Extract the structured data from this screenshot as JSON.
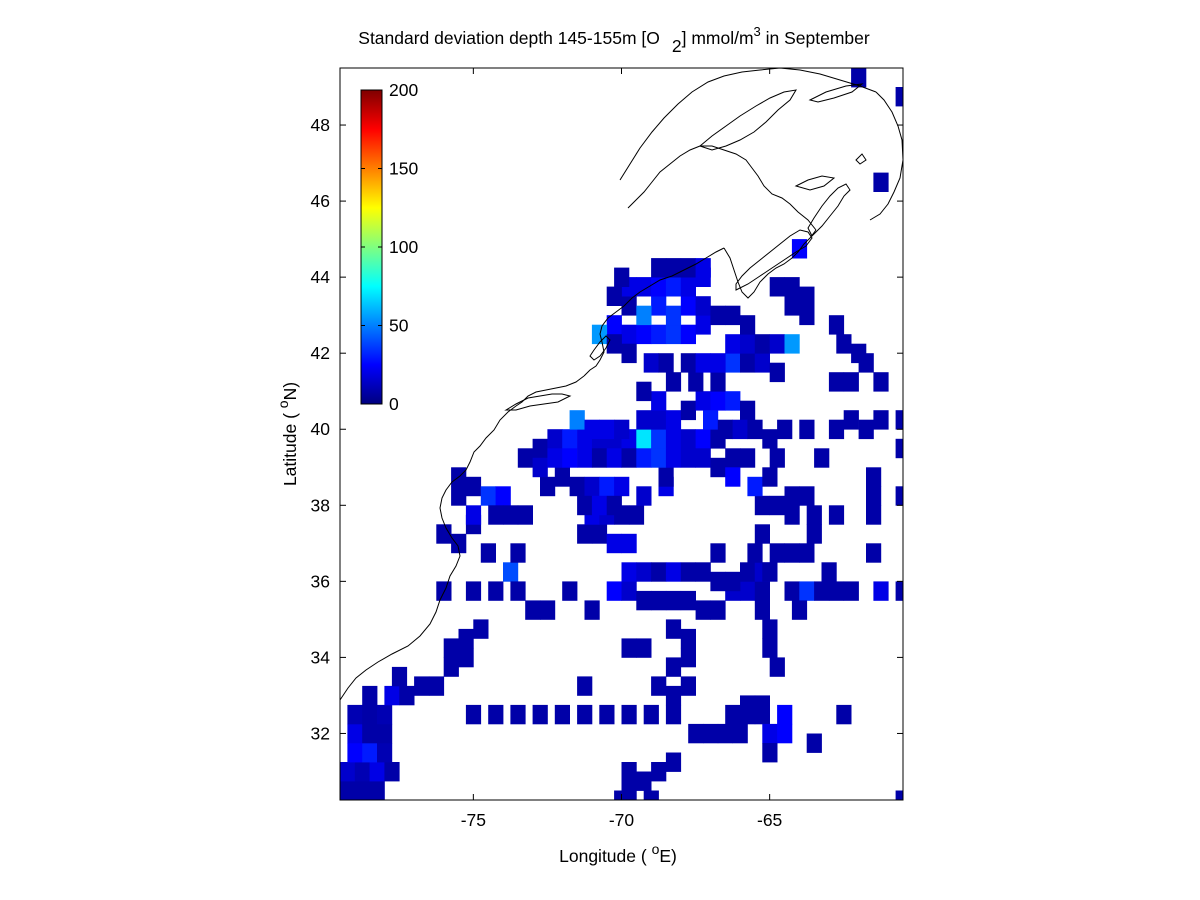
{
  "figure": {
    "title": "Standard deviation depth 145-155m [O 2] mmol/m3 in September",
    "title_parts": {
      "main": "Standard deviation depth 145-155m [O",
      "sub": "2",
      "unit_pre": "] mmol/m",
      "sup": "3",
      "tail": " in September"
    },
    "xlabel": "Longitude ( °E)",
    "xlabel_parts": {
      "pre": "Longitude ( ",
      "sup": "o",
      "post": "E)"
    },
    "ylabel": "Latitude ( °N)",
    "ylabel_parts": {
      "pre": "Latitude ( ",
      "sup": "o",
      "post": "N)"
    }
  },
  "chart_data": {
    "type": "heatmap",
    "title": "Standard deviation depth 145-155m [O2] mmol/m3 in September",
    "xlabel": "Longitude ( °E)",
    "ylabel": "Latitude ( °N)",
    "xlim": [
      -79.5,
      -60.5
    ],
    "ylim": [
      30.25,
      49.5
    ],
    "xticks": [
      -75,
      -70,
      -65
    ],
    "xtick_labels": [
      "-75",
      "-70",
      "-65"
    ],
    "yticks": [
      32,
      34,
      36,
      38,
      40,
      42,
      44,
      46,
      48
    ],
    "ytick_labels": [
      "32",
      "34",
      "36",
      "38",
      "40",
      "42",
      "44",
      "46",
      "48"
    ],
    "cell_size_deg": 0.5,
    "colormap": "jet",
    "colorbar": {
      "min": 0,
      "max": 200,
      "ticks": [
        0,
        50,
        100,
        150,
        200
      ],
      "tick_labels": [
        "0",
        "50",
        "100",
        "150",
        "200"
      ],
      "placement": "upper-left inside axes"
    },
    "coastline": "Northeast US and Atlantic Canada coast (black line)",
    "cells": [
      [
        -79.25,
        30.5,
        8
      ],
      [
        -78.75,
        30.5,
        8
      ],
      [
        -78.25,
        30.5,
        8
      ],
      [
        -79.25,
        31.0,
        15
      ],
      [
        -78.75,
        31.0,
        10
      ],
      [
        -78.25,
        31.0,
        20
      ],
      [
        -77.75,
        31.0,
        8
      ],
      [
        -79.0,
        31.5,
        25
      ],
      [
        -78.5,
        31.5,
        30
      ],
      [
        -78.0,
        31.5,
        10
      ],
      [
        -79.0,
        32.0,
        20
      ],
      [
        -78.5,
        32.0,
        8
      ],
      [
        -78.0,
        32.0,
        8
      ],
      [
        -79.0,
        32.5,
        10
      ],
      [
        -78.5,
        32.5,
        8
      ],
      [
        -78.0,
        32.5,
        10
      ],
      [
        -78.5,
        33.0,
        8
      ],
      [
        -77.75,
        33.0,
        20
      ],
      [
        -77.25,
        33.0,
        8
      ],
      [
        -76.75,
        33.25,
        8
      ],
      [
        -76.25,
        33.25,
        8
      ],
      [
        -77.5,
        33.5,
        8
      ],
      [
        -75.75,
        33.75,
        8
      ],
      [
        -75.25,
        34.0,
        8
      ],
      [
        -75.75,
        34.25,
        8
      ],
      [
        -75.25,
        34.5,
        8
      ],
      [
        -74.75,
        34.75,
        8
      ],
      [
        -75.0,
        32.5,
        8
      ],
      [
        -74.25,
        32.5,
        8
      ],
      [
        -73.5,
        32.5,
        8
      ],
      [
        -72.75,
        32.5,
        8
      ],
      [
        -72.0,
        32.5,
        8
      ],
      [
        -71.25,
        32.5,
        8
      ],
      [
        -70.5,
        32.5,
        8
      ],
      [
        -69.75,
        32.5,
        8
      ],
      [
        -69.0,
        32.5,
        8
      ],
      [
        -68.25,
        32.5,
        8
      ],
      [
        -71.25,
        33.25,
        8
      ],
      [
        -70.0,
        30.25,
        8
      ],
      [
        -69.75,
        30.5,
        8
      ],
      [
        -69.0,
        30.25,
        8
      ],
      [
        -69.75,
        31.0,
        8
      ],
      [
        -69.25,
        30.75,
        8
      ],
      [
        -68.75,
        31.0,
        8
      ],
      [
        -68.25,
        31.25,
        8
      ],
      [
        -68.25,
        33.0,
        8
      ],
      [
        -68.75,
        33.25,
        8
      ],
      [
        -67.75,
        33.25,
        8
      ],
      [
        -68.25,
        33.75,
        8
      ],
      [
        -67.75,
        34.0,
        8
      ],
      [
        -67.75,
        34.5,
        8
      ],
      [
        -68.25,
        34.75,
        8
      ],
      [
        -69.75,
        34.25,
        8
      ],
      [
        -69.25,
        34.25,
        8
      ],
      [
        -67.5,
        32.0,
        8
      ],
      [
        -67.0,
        32.0,
        8
      ],
      [
        -66.5,
        32.0,
        8
      ],
      [
        -66.0,
        32.0,
        8
      ],
      [
        -66.25,
        32.5,
        8
      ],
      [
        -65.75,
        32.5,
        8
      ],
      [
        -65.25,
        32.5,
        8
      ],
      [
        -65.75,
        32.75,
        8
      ],
      [
        -65.25,
        32.75,
        8
      ],
      [
        -65.0,
        32.0,
        20
      ],
      [
        -64.5,
        32.0,
        25
      ],
      [
        -64.5,
        32.5,
        25
      ],
      [
        -65.0,
        31.5,
        8
      ],
      [
        -63.5,
        31.75,
        8
      ],
      [
        -62.5,
        32.5,
        8
      ],
      [
        -60.5,
        30.25,
        8
      ],
      [
        -76.0,
        35.75,
        8
      ],
      [
        -75.0,
        35.75,
        8
      ],
      [
        -74.25,
        35.75,
        8
      ],
      [
        -73.75,
        36.25,
        40
      ],
      [
        -73.5,
        35.75,
        8
      ],
      [
        -73.0,
        35.25,
        8
      ],
      [
        -72.5,
        35.25,
        8
      ],
      [
        -71.75,
        35.75,
        8
      ],
      [
        -71.0,
        35.25,
        8
      ],
      [
        -70.25,
        35.75,
        25
      ],
      [
        -69.75,
        35.75,
        15
      ],
      [
        -69.25,
        35.5,
        8
      ],
      [
        -68.75,
        35.5,
        8
      ],
      [
        -68.25,
        35.5,
        8
      ],
      [
        -67.75,
        35.5,
        8
      ],
      [
        -67.25,
        35.25,
        8
      ],
      [
        -66.75,
        35.25,
        8
      ],
      [
        -66.25,
        35.75,
        15
      ],
      [
        -65.75,
        35.75,
        15
      ],
      [
        -65.25,
        35.75,
        8
      ],
      [
        -69.75,
        36.25,
        20
      ],
      [
        -69.25,
        36.25,
        15
      ],
      [
        -68.75,
        36.25,
        8
      ],
      [
        -68.25,
        36.25,
        20
      ],
      [
        -67.75,
        36.25,
        8
      ],
      [
        -67.25,
        36.25,
        8
      ],
      [
        -66.75,
        36.0,
        8
      ],
      [
        -66.25,
        36.0,
        8
      ],
      [
        -65.75,
        36.25,
        8
      ],
      [
        -65.25,
        36.25,
        15
      ],
      [
        -65.25,
        35.25,
        8
      ],
      [
        -65.0,
        34.75,
        8
      ],
      [
        -65.0,
        34.25,
        8
      ],
      [
        -64.75,
        33.75,
        8
      ],
      [
        -64.25,
        35.75,
        8
      ],
      [
        -63.75,
        35.75,
        35
      ],
      [
        -63.25,
        35.75,
        8
      ],
      [
        -62.75,
        35.75,
        8
      ],
      [
        -62.25,
        35.75,
        8
      ],
      [
        -61.25,
        35.75,
        20
      ],
      [
        -60.5,
        35.75,
        8
      ],
      [
        -64.0,
        35.25,
        8
      ],
      [
        -63.0,
        36.25,
        8
      ],
      [
        -76.0,
        37.25,
        8
      ],
      [
        -75.5,
        37.0,
        8
      ],
      [
        -75.0,
        37.5,
        8
      ],
      [
        -74.5,
        36.75,
        8
      ],
      [
        -73.5,
        36.75,
        8
      ],
      [
        -75.5,
        38.25,
        8
      ],
      [
        -75.0,
        38.5,
        8
      ],
      [
        -74.5,
        38.25,
        35
      ],
      [
        -74.0,
        38.25,
        25
      ],
      [
        -75.5,
        38.75,
        8
      ],
      [
        -75.0,
        37.75,
        20
      ],
      [
        -74.25,
        37.75,
        8
      ],
      [
        -73.75,
        37.75,
        8
      ],
      [
        -73.25,
        37.75,
        8
      ],
      [
        -72.5,
        38.5,
        8
      ],
      [
        -72.0,
        38.75,
        8
      ],
      [
        -71.5,
        38.5,
        8
      ],
      [
        -71.0,
        38.5,
        15
      ],
      [
        -70.5,
        38.5,
        30
      ],
      [
        -70.0,
        38.5,
        20
      ],
      [
        -71.25,
        37.25,
        8
      ],
      [
        -70.75,
        37.25,
        8
      ],
      [
        -70.25,
        37.0,
        20
      ],
      [
        -69.75,
        37.0,
        20
      ],
      [
        -71.0,
        37.75,
        20
      ],
      [
        -70.5,
        37.75,
        15
      ],
      [
        -70.0,
        37.75,
        8
      ],
      [
        -69.5,
        37.75,
        8
      ],
      [
        -71.25,
        38.0,
        8
      ],
      [
        -70.75,
        38.0,
        20
      ],
      [
        -70.25,
        38.0,
        8
      ],
      [
        -69.25,
        38.25,
        15
      ],
      [
        -68.5,
        38.5,
        20
      ],
      [
        -68.5,
        38.75,
        8
      ],
      [
        -65.25,
        38.0,
        8
      ],
      [
        -64.75,
        38.0,
        8
      ],
      [
        -64.25,
        38.25,
        8
      ],
      [
        -63.75,
        38.25,
        8
      ],
      [
        -65.5,
        38.5,
        30
      ],
      [
        -65.0,
        38.75,
        8
      ],
      [
        -64.75,
        39.25,
        8
      ],
      [
        -64.25,
        37.75,
        8
      ],
      [
        -63.5,
        37.75,
        8
      ],
      [
        -62.75,
        37.75,
        8
      ],
      [
        -61.5,
        37.75,
        8
      ],
      [
        -63.5,
        37.25,
        8
      ],
      [
        -65.25,
        37.25,
        8
      ],
      [
        -64.75,
        36.75,
        8
      ],
      [
        -64.25,
        36.75,
        8
      ],
      [
        -63.75,
        36.75,
        8
      ],
      [
        -65.5,
        36.75,
        8
      ],
      [
        -65.0,
        36.25,
        8
      ],
      [
        -66.75,
        36.75,
        8
      ],
      [
        -61.5,
        36.75,
        8
      ],
      [
        -61.5,
        38.25,
        8
      ],
      [
        -60.5,
        38.25,
        8
      ],
      [
        -61.5,
        38.75,
        8
      ],
      [
        -72.75,
        39.5,
        8
      ],
      [
        -72.25,
        39.75,
        15
      ],
      [
        -71.75,
        39.75,
        30
      ],
      [
        -71.25,
        39.75,
        20
      ],
      [
        -70.75,
        39.75,
        15
      ],
      [
        -70.25,
        39.75,
        15
      ],
      [
        -69.75,
        39.75,
        20
      ],
      [
        -69.25,
        39.75,
        70
      ],
      [
        -68.75,
        39.75,
        35
      ],
      [
        -68.25,
        39.75,
        20
      ],
      [
        -67.75,
        39.75,
        15
      ],
      [
        -67.25,
        39.75,
        25
      ],
      [
        -66.75,
        39.75,
        8
      ],
      [
        -73.25,
        39.25,
        8
      ],
      [
        -72.75,
        39.0,
        15
      ],
      [
        -72.25,
        39.25,
        20
      ],
      [
        -71.75,
        39.25,
        25
      ],
      [
        -71.25,
        39.25,
        20
      ],
      [
        -70.75,
        39.25,
        8
      ],
      [
        -70.25,
        39.25,
        20
      ],
      [
        -69.75,
        39.25,
        8
      ],
      [
        -69.25,
        39.25,
        30
      ],
      [
        -68.75,
        39.25,
        35
      ],
      [
        -68.25,
        39.25,
        20
      ],
      [
        -67.75,
        39.25,
        15
      ],
      [
        -67.25,
        39.25,
        15
      ],
      [
        -71.5,
        40.25,
        50
      ],
      [
        -71.0,
        40.0,
        20
      ],
      [
        -70.5,
        40.0,
        20
      ],
      [
        -70.0,
        40.0,
        15
      ],
      [
        -69.25,
        40.25,
        15
      ],
      [
        -68.75,
        40.25,
        15
      ],
      [
        -68.25,
        40.25,
        20
      ],
      [
        -67.75,
        40.5,
        8
      ],
      [
        -67.25,
        40.75,
        20
      ],
      [
        -66.75,
        40.75,
        25
      ],
      [
        -66.25,
        40.75,
        30
      ],
      [
        -65.75,
        40.5,
        8
      ],
      [
        -67.0,
        40.25,
        30
      ],
      [
        -66.5,
        40.0,
        8
      ],
      [
        -66.0,
        40.0,
        15
      ],
      [
        -65.5,
        40.0,
        8
      ],
      [
        -66.75,
        39.0,
        8
      ],
      [
        -66.25,
        39.25,
        8
      ],
      [
        -65.75,
        39.25,
        8
      ],
      [
        -66.25,
        38.75,
        25
      ],
      [
        -65.0,
        39.75,
        8
      ],
      [
        -64.5,
        40.0,
        8
      ],
      [
        -63.75,
        40.0,
        8
      ],
      [
        -62.75,
        40.0,
        8
      ],
      [
        -62.25,
        40.25,
        8
      ],
      [
        -61.75,
        40.0,
        8
      ],
      [
        -61.25,
        40.25,
        8
      ],
      [
        -60.5,
        40.25,
        8
      ],
      [
        -63.25,
        39.25,
        8
      ],
      [
        -60.5,
        39.5,
        8
      ],
      [
        -68.75,
        40.75,
        20
      ],
      [
        -69.25,
        41.0,
        8
      ],
      [
        -68.25,
        41.25,
        8
      ],
      [
        -67.5,
        41.25,
        8
      ],
      [
        -66.75,
        41.25,
        8
      ],
      [
        -66.25,
        41.75,
        35
      ],
      [
        -65.75,
        41.75,
        8
      ],
      [
        -65.25,
        41.75,
        15
      ],
      [
        -64.75,
        41.5,
        8
      ],
      [
        -69.0,
        41.75,
        15
      ],
      [
        -68.5,
        41.75,
        8
      ],
      [
        -67.75,
        41.75,
        8
      ],
      [
        -67.25,
        41.75,
        20
      ],
      [
        -66.75,
        41.75,
        20
      ],
      [
        -66.25,
        42.25,
        20
      ],
      [
        -65.75,
        42.25,
        15
      ],
      [
        -65.25,
        42.25,
        8
      ],
      [
        -64.75,
        42.25,
        15
      ],
      [
        -64.25,
        42.25,
        55
      ],
      [
        -62.75,
        41.25,
        8
      ],
      [
        -62.25,
        41.25,
        8
      ],
      [
        -61.75,
        41.75,
        8
      ],
      [
        -61.25,
        41.25,
        8
      ],
      [
        -62.0,
        42.0,
        8
      ],
      [
        -70.25,
        42.75,
        25
      ],
      [
        -69.75,
        42.5,
        20
      ],
      [
        -69.25,
        42.5,
        25
      ],
      [
        -68.75,
        42.5,
        30
      ],
      [
        -68.25,
        42.5,
        35
      ],
      [
        -67.75,
        42.5,
        25
      ],
      [
        -67.25,
        42.75,
        20
      ],
      [
        -70.75,
        42.5,
        55
      ],
      [
        -70.25,
        42.25,
        8
      ],
      [
        -69.75,
        42.0,
        8
      ],
      [
        -68.75,
        43.25,
        30
      ],
      [
        -68.25,
        43.0,
        35
      ],
      [
        -67.75,
        43.25,
        25
      ],
      [
        -67.25,
        43.25,
        15
      ],
      [
        -66.75,
        43.0,
        8
      ],
      [
        -66.25,
        43.0,
        8
      ],
      [
        -65.75,
        42.75,
        8
      ],
      [
        -69.75,
        43.25,
        8
      ],
      [
        -69.25,
        43.0,
        50
      ],
      [
        -69.75,
        43.75,
        20
      ],
      [
        -70.0,
        44.0,
        8
      ],
      [
        -70.25,
        43.5,
        8
      ],
      [
        -69.25,
        43.75,
        20
      ],
      [
        -68.75,
        43.75,
        25
      ],
      [
        -68.25,
        43.75,
        30
      ],
      [
        -67.75,
        43.75,
        20
      ],
      [
        -67.25,
        44.0,
        20
      ],
      [
        -68.25,
        44.25,
        8
      ],
      [
        -67.75,
        44.25,
        8
      ],
      [
        -67.25,
        44.25,
        20
      ],
      [
        -68.75,
        44.25,
        8
      ],
      [
        -64.75,
        43.75,
        8
      ],
      [
        -64.25,
        43.75,
        8
      ],
      [
        -64.25,
        43.25,
        8
      ],
      [
        -63.75,
        43.5,
        8
      ],
      [
        -63.75,
        43.0,
        8
      ],
      [
        -62.75,
        42.75,
        8
      ],
      [
        -62.5,
        42.25,
        8
      ],
      [
        -64.0,
        44.75,
        25
      ],
      [
        -61.25,
        46.5,
        8
      ],
      [
        -60.5,
        48.75,
        8
      ],
      [
        -62.0,
        49.25,
        8
      ]
    ]
  }
}
